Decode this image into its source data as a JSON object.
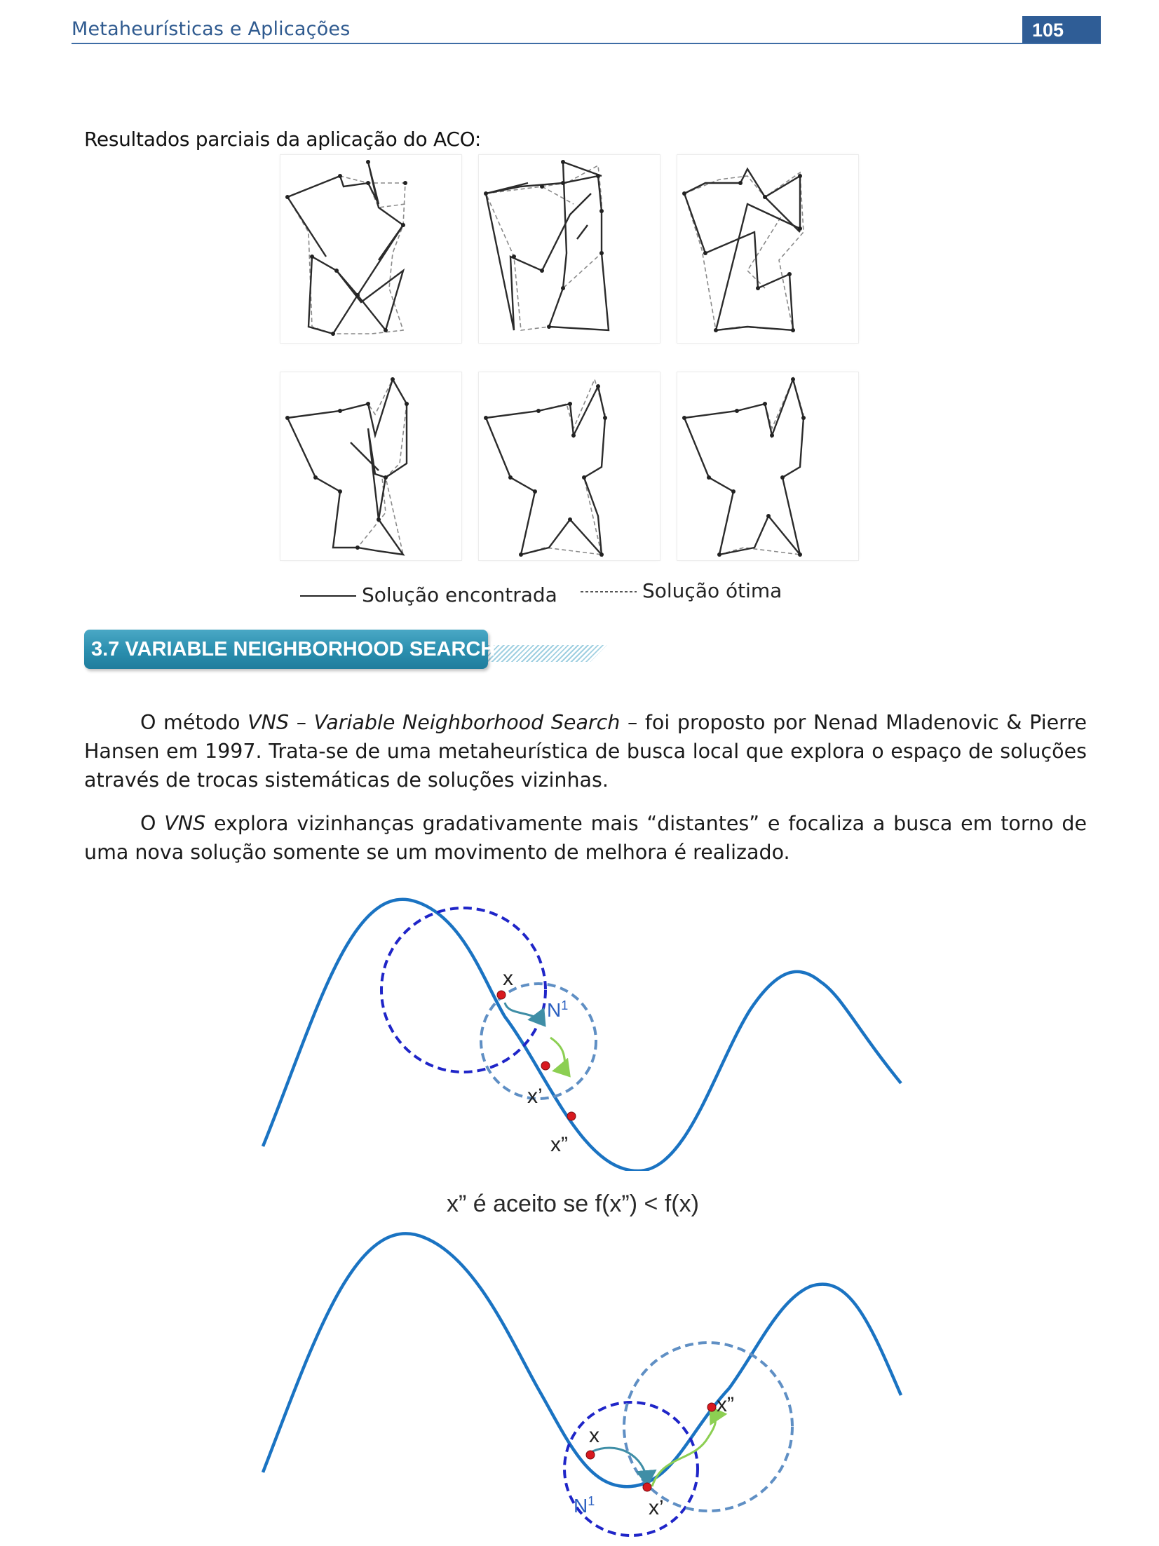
{
  "header": {
    "title": "Metaheurísticas e Aplicações",
    "page_number": "105",
    "accent_color": "#2f5d96"
  },
  "aco_section": {
    "subtitle": "Resultados parciais da aplicação do ACO:",
    "legend": {
      "solid_label": "Solução encontrada",
      "dashed_label": "Solução ótima"
    }
  },
  "section": {
    "heading": "3.7 VARIABLE NEIGHBORHOOD SEARCH",
    "banner_color": "#2a8eae"
  },
  "paragraph1": {
    "p1": "O método ",
    "vns": "VNS",
    "p2": " – ",
    "vns_full": "Variable Neighborhood Search",
    "p3": " – foi proposto por Nenad Mladenovic & Pierre Hansen em 1997. Trata-se de uma metaheurística de busca local que explora o espaço de soluções através de trocas sistemáticas de soluções vizinhas."
  },
  "paragraph2": {
    "p1": "O ",
    "vns": "VNS",
    "p2": " explora vizinhanças gradativamente mais “distantes” e focaliza a busca em torno de uma nova solução somente se um movimento de melhora é realizado."
  },
  "vns_figure": {
    "top": {
      "label_x": "x",
      "label_x1": "x’",
      "label_x2": "x”",
      "label_n": "N",
      "label_n_sup": "1"
    },
    "caption": "x” é aceito se f(x”) < f(x)",
    "bottom": {
      "label_x": "x",
      "label_x1": "x’",
      "label_x2": "x”",
      "label_n": "N",
      "label_n_sup": "1"
    },
    "colors": {
      "curve": "#1a73c2",
      "n1_circle": "#1f25c8",
      "n2_circle": "#5f8fc4",
      "point": "#d8191f",
      "move_arrow": "#3f8ea6",
      "move_arrow_2": "#8ccf52"
    }
  }
}
